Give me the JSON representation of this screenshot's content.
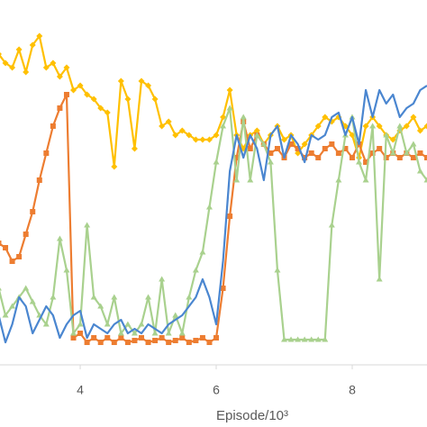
{
  "chart_data": {
    "type": "line",
    "x_label": "Episode/10³",
    "x": [
      2.8,
      2.9,
      3.0,
      3.1,
      3.2,
      3.3,
      3.4,
      3.5,
      3.6,
      3.7,
      3.8,
      3.9,
      4.0,
      4.1,
      4.2,
      4.3,
      4.4,
      4.5,
      4.6,
      4.7,
      4.8,
      4.9,
      5.0,
      5.1,
      5.2,
      5.3,
      5.4,
      5.5,
      5.6,
      5.7,
      5.8,
      5.9,
      6.0,
      6.1,
      6.2,
      6.3,
      6.4,
      6.5,
      6.6,
      6.7,
      6.8,
      6.9,
      7.0,
      7.1,
      7.2,
      7.3,
      7.4,
      7.5,
      7.6,
      7.7,
      7.8,
      7.9,
      8.0,
      8.1,
      8.2,
      8.3,
      8.4,
      8.5,
      8.6,
      8.7,
      8.8,
      8.9,
      9.0,
      9.1
    ],
    "xlim": [
      2.82,
      9.1
    ],
    "xticks": [
      4,
      6,
      8
    ],
    "ylim": [
      0,
      400
    ],
    "series": [
      {
        "color": "#ffc000",
        "marker": "diamond",
        "values": [
          345,
          335,
          330,
          350,
          325,
          355,
          365,
          330,
          335,
          320,
          330,
          305,
          310,
          300,
          295,
          285,
          280,
          220,
          315,
          295,
          240,
          315,
          310,
          295,
          265,
          270,
          255,
          260,
          255,
          250,
          250,
          250,
          255,
          275,
          305,
          255,
          240,
          255,
          260,
          245,
          255,
          265,
          250,
          255,
          235,
          245,
          255,
          265,
          275,
          270,
          275,
          265,
          255,
          230,
          265,
          275,
          265,
          255,
          250,
          260,
          265,
          275,
          260,
          265
        ]
      },
      {
        "color": "#ed7d31",
        "marker": "square",
        "values": [
          135,
          130,
          115,
          120,
          145,
          170,
          205,
          235,
          265,
          285,
          300,
          30,
          35,
          25,
          30,
          25,
          30,
          25,
          30,
          25,
          27,
          30,
          25,
          27,
          30,
          25,
          27,
          30,
          25,
          27,
          30,
          25,
          30,
          85,
          165,
          230,
          270,
          240,
          255,
          245,
          235,
          240,
          230,
          245,
          240,
          230,
          235,
          230,
          240,
          245,
          235,
          240,
          230,
          245,
          225,
          235,
          240,
          230,
          235,
          230,
          235,
          230,
          235,
          230
        ]
      },
      {
        "color": "#a9d18e",
        "marker": "triangle",
        "values": [
          85,
          55,
          65,
          75,
          85,
          70,
          55,
          45,
          75,
          140,
          105,
          35,
          45,
          155,
          75,
          65,
          45,
          75,
          35,
          45,
          35,
          45,
          75,
          35,
          95,
          35,
          55,
          35,
          75,
          105,
          125,
          175,
          225,
          265,
          285,
          205,
          275,
          205,
          255,
          245,
          225,
          105,
          28,
          28,
          28,
          28,
          28,
          28,
          28,
          155,
          205,
          255,
          275,
          225,
          205,
          265,
          95,
          255,
          235,
          265,
          235,
          245,
          215,
          205
        ]
      },
      {
        "color": "#4a86d0",
        "marker": "none",
        "values": [
          55,
          25,
          45,
          75,
          65,
          35,
          50,
          65,
          55,
          30,
          45,
          55,
          60,
          30,
          45,
          40,
          35,
          45,
          50,
          35,
          40,
          35,
          45,
          40,
          35,
          45,
          50,
          55,
          65,
          75,
          95,
          75,
          45,
          115,
          215,
          255,
          230,
          255,
          240,
          205,
          255,
          265,
          230,
          255,
          245,
          225,
          255,
          250,
          255,
          275,
          280,
          255,
          275,
          245,
          305,
          275,
          305,
          290,
          300,
          275,
          285,
          290,
          305,
          310
        ]
      }
    ]
  }
}
